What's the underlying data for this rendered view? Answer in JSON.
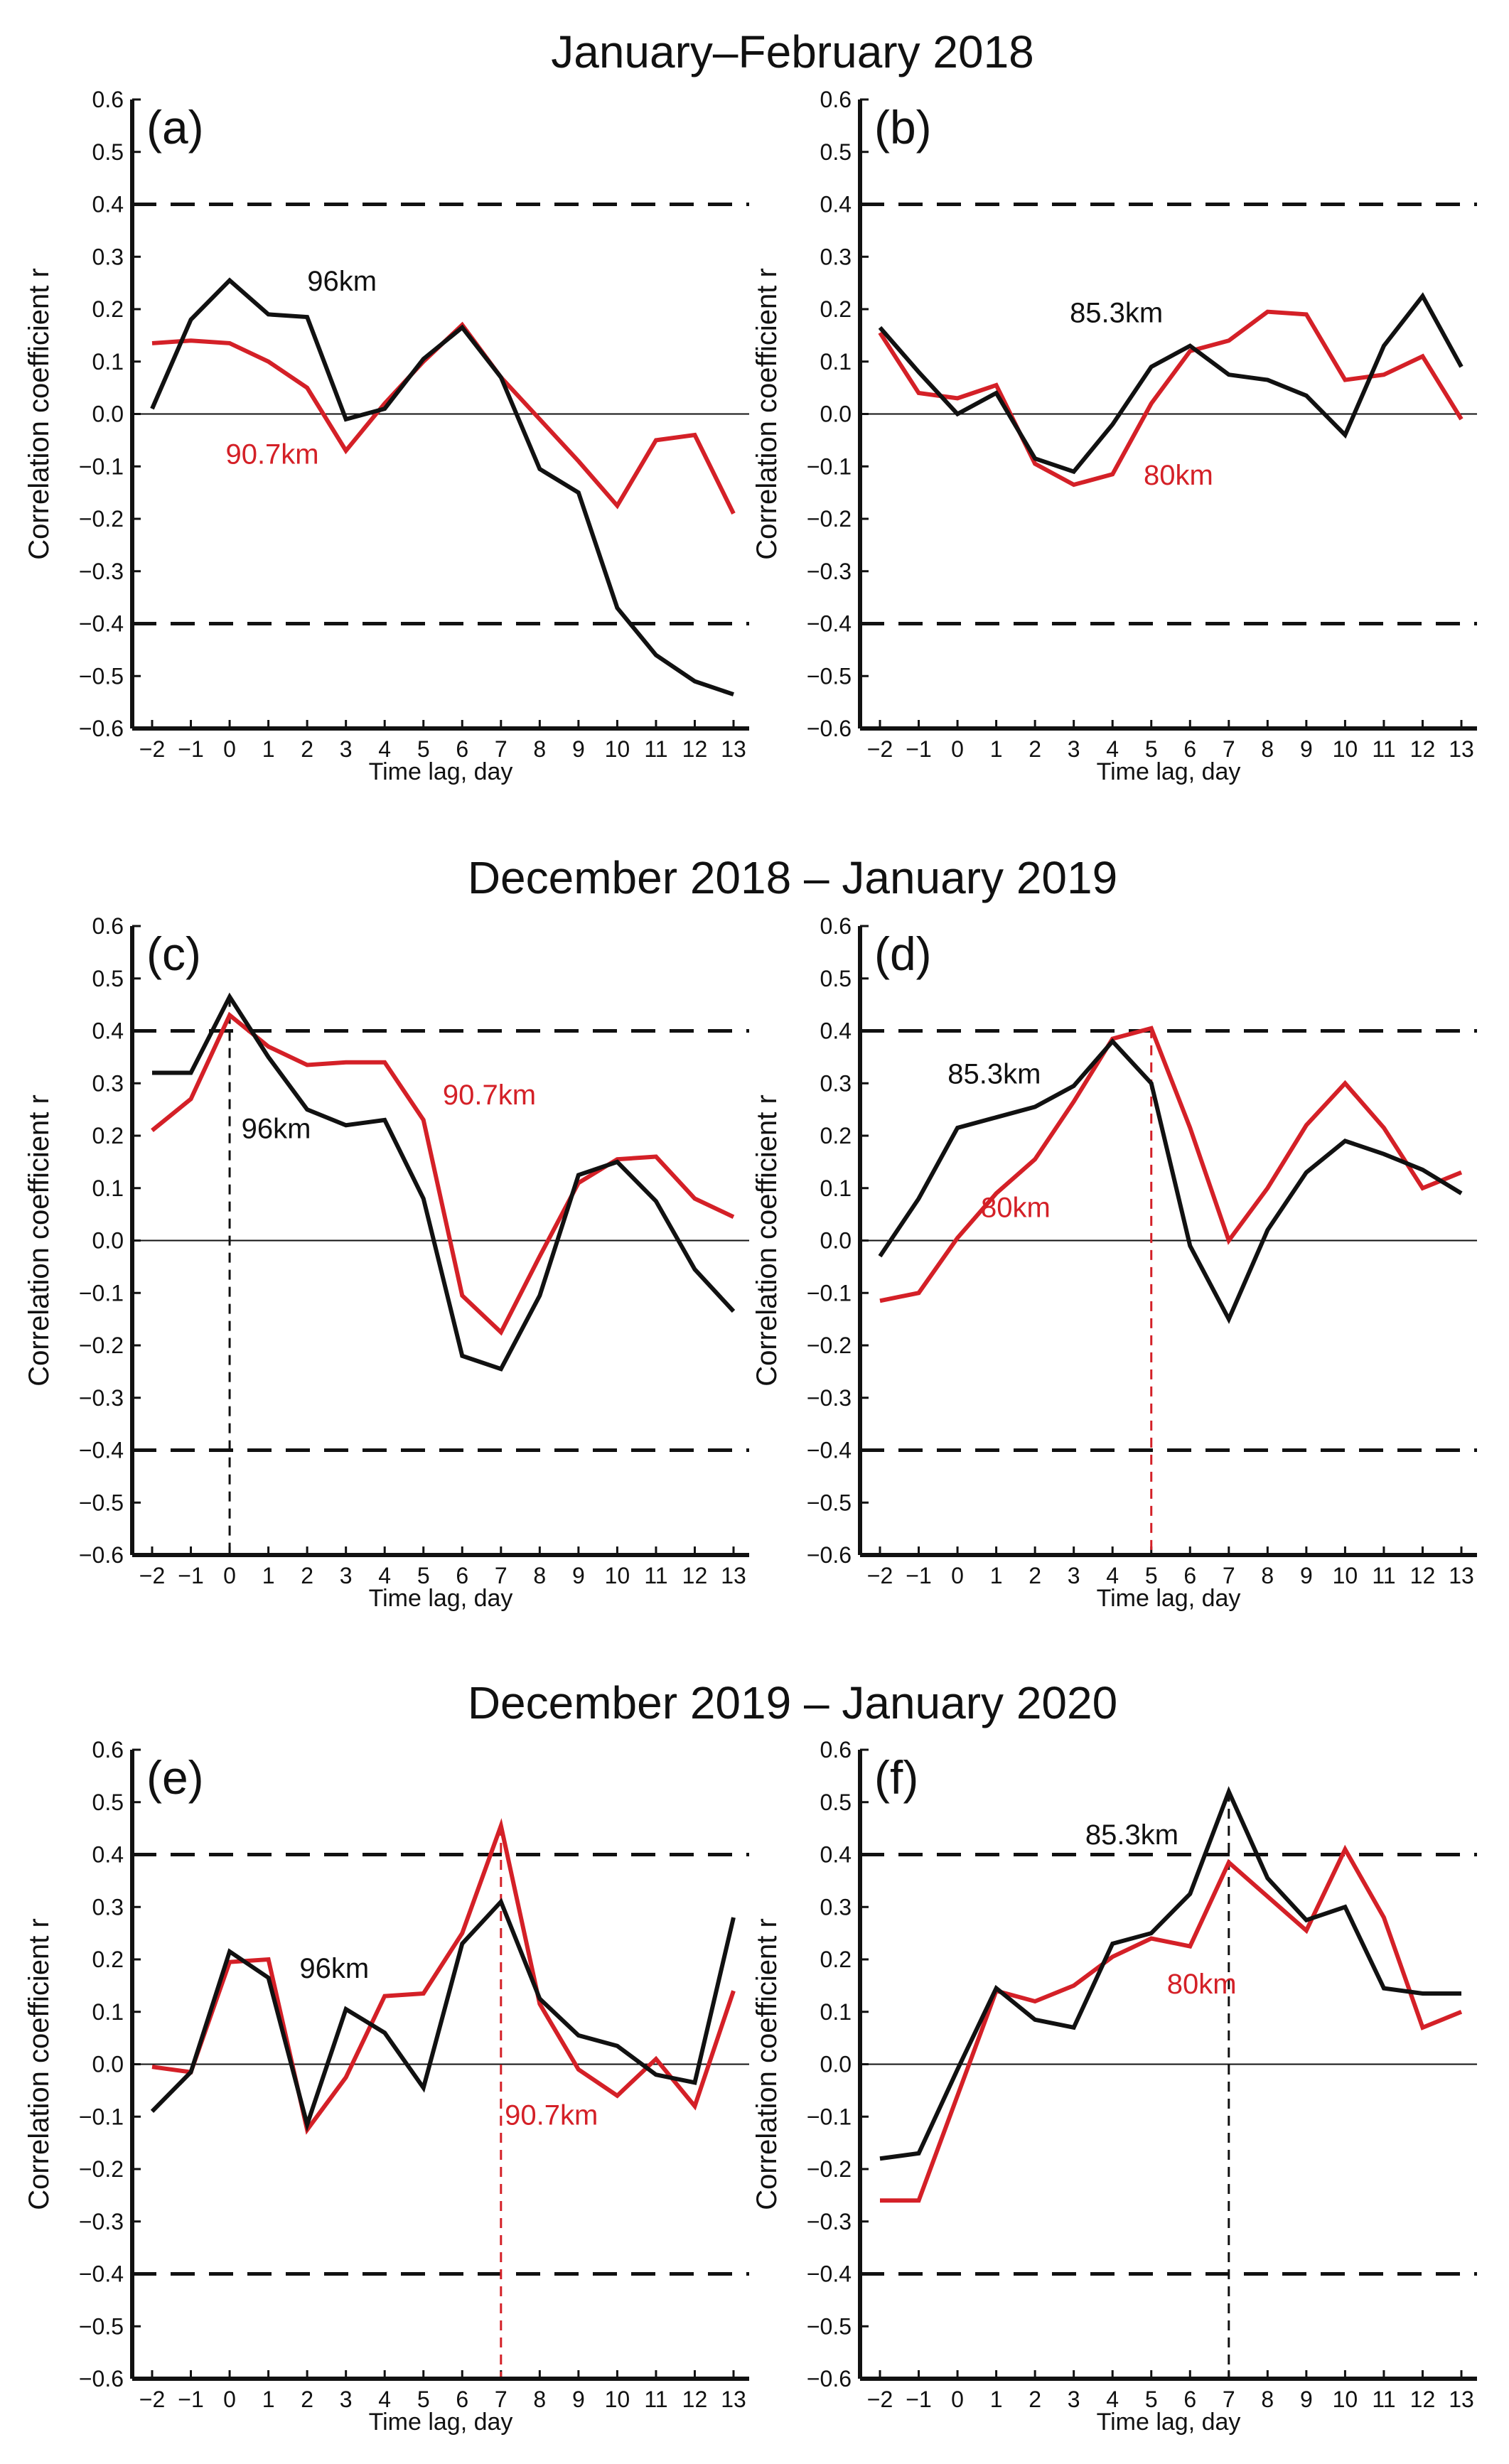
{
  "rows": [
    {
      "title": "January–February 2018",
      "panels": [
        0,
        1
      ]
    },
    {
      "title": "December 2018 – January 2019",
      "panels": [
        2,
        3
      ]
    },
    {
      "title": "December 2019 – January 2020",
      "panels": [
        4,
        5
      ]
    }
  ],
  "colors": {
    "black": "#111111",
    "red": "#d42027",
    "axis": "#111111"
  },
  "chart_data": [
    {
      "type": "line",
      "label": "(a)",
      "x": [
        -2,
        -1,
        0,
        1,
        2,
        3,
        4,
        5,
        6,
        7,
        8,
        9,
        10,
        11,
        12,
        13
      ],
      "xlabel": "Time lag, day",
      "ylabel": "Correlation coefficient r",
      "ylim": [
        -0.6,
        0.6
      ],
      "xlim": [
        -2,
        13
      ],
      "yticks": [
        "0.6",
        "0.5",
        "0.4",
        "0.3",
        "0.2",
        "0.1",
        "0.0",
        "−0.1",
        "−0.2",
        "−0.3",
        "−0.4",
        "−0.5",
        "−0.6"
      ],
      "xticks": [
        "−2",
        "−1",
        "0",
        "1",
        "2",
        "3",
        "4",
        "5",
        "6",
        "7",
        "8",
        "9",
        "10",
        "11",
        "12",
        "13"
      ],
      "significance": [
        0.4,
        -0.4
      ],
      "series": [
        {
          "name": "96km",
          "color": "black",
          "values": [
            0.01,
            0.18,
            0.255,
            0.19,
            0.185,
            -0.01,
            0.01,
            0.105,
            0.165,
            0.07,
            -0.105,
            -0.15,
            -0.37,
            -0.46,
            -0.51,
            -0.535
          ]
        },
        {
          "name": "90.7km",
          "color": "red",
          "values": [
            0.135,
            0.14,
            0.135,
            0.1,
            0.05,
            -0.07,
            0.02,
            0.1,
            0.17,
            0.07,
            -0.01,
            -0.09,
            -0.175,
            -0.05,
            -0.04,
            -0.19
          ]
        }
      ],
      "annotations": [
        {
          "text": "96km",
          "color": "black",
          "x": 2.9,
          "y": 0.235
        },
        {
          "text": "90.7km",
          "color": "red",
          "x": 1.1,
          "y": -0.095
        }
      ],
      "vline": null
    },
    {
      "type": "line",
      "label": "(b)",
      "x": [
        -2,
        -1,
        0,
        1,
        2,
        3,
        4,
        5,
        6,
        7,
        8,
        9,
        10,
        11,
        12,
        13
      ],
      "xlabel": "Time lag, day",
      "ylabel": "Correlation coefficient r",
      "ylim": [
        -0.6,
        0.6
      ],
      "xlim": [
        -2,
        13
      ],
      "yticks": [
        "0.6",
        "0.5",
        "0.4",
        "0.3",
        "0.2",
        "0.1",
        "0.0",
        "−0.1",
        "−0.2",
        "−0.3",
        "−0.4",
        "−0.5",
        "−0.6"
      ],
      "xticks": [
        "−2",
        "−1",
        "0",
        "1",
        "2",
        "3",
        "4",
        "5",
        "6",
        "7",
        "8",
        "9",
        "10",
        "11",
        "12",
        "13"
      ],
      "significance": [
        0.4,
        -0.4
      ],
      "series": [
        {
          "name": "85.3km",
          "color": "black",
          "values": [
            0.165,
            0.08,
            0.0,
            0.04,
            -0.085,
            -0.11,
            -0.02,
            0.09,
            0.13,
            0.075,
            0.065,
            0.035,
            -0.04,
            0.13,
            0.225,
            0.09
          ]
        },
        {
          "name": "80km",
          "color": "red",
          "values": [
            0.155,
            0.04,
            0.03,
            0.055,
            -0.095,
            -0.135,
            -0.115,
            0.02,
            0.12,
            0.14,
            0.195,
            0.19,
            0.065,
            0.075,
            0.11,
            -0.01
          ]
        }
      ],
      "annotations": [
        {
          "text": "85.3km",
          "color": "black",
          "x": 4.1,
          "y": 0.175
        },
        {
          "text": "80km",
          "color": "red",
          "x": 5.7,
          "y": -0.135
        }
      ],
      "vline": null
    },
    {
      "type": "line",
      "label": "(c)",
      "x": [
        -2,
        -1,
        0,
        1,
        2,
        3,
        4,
        5,
        6,
        7,
        8,
        9,
        10,
        11,
        12,
        13
      ],
      "xlabel": "Time lag, day",
      "ylabel": "Correlation coefficient r",
      "ylim": [
        -0.6,
        0.6
      ],
      "xlim": [
        -2,
        13
      ],
      "yticks": [
        "0.6",
        "0.5",
        "0.4",
        "0.3",
        "0.2",
        "0.1",
        "0.0",
        "−0.1",
        "−0.2",
        "−0.3",
        "−0.4",
        "−0.5",
        "−0.6"
      ],
      "xticks": [
        "−2",
        "−1",
        "0",
        "1",
        "2",
        "3",
        "4",
        "5",
        "6",
        "7",
        "8",
        "9",
        "10",
        "11",
        "12",
        "13"
      ],
      "significance": [
        0.4,
        -0.4
      ],
      "series": [
        {
          "name": "96km",
          "color": "black",
          "values": [
            0.32,
            0.32,
            0.465,
            0.35,
            0.25,
            0.22,
            0.23,
            0.08,
            -0.22,
            -0.245,
            -0.105,
            0.125,
            0.15,
            0.075,
            -0.055,
            -0.135
          ]
        },
        {
          "name": "90.7km",
          "color": "red",
          "values": [
            0.21,
            0.27,
            0.43,
            0.37,
            0.335,
            0.34,
            0.34,
            0.23,
            -0.105,
            -0.175,
            -0.03,
            0.11,
            0.155,
            0.16,
            0.08,
            0.045
          ]
        }
      ],
      "annotations": [
        {
          "text": "96km",
          "color": "black",
          "x": 1.2,
          "y": 0.195
        },
        {
          "text": "90.7km",
          "color": "red",
          "x": 6.7,
          "y": 0.26
        }
      ],
      "vline": {
        "x": 0,
        "color": "black"
      }
    },
    {
      "type": "line",
      "label": "(d)",
      "x": [
        -2,
        -1,
        0,
        1,
        2,
        3,
        4,
        5,
        6,
        7,
        8,
        9,
        10,
        11,
        12,
        13
      ],
      "xlabel": "Time lag, day",
      "ylabel": "Correlation coefficient r",
      "ylim": [
        -0.6,
        0.6
      ],
      "xlim": [
        -2,
        13
      ],
      "yticks": [
        "0.6",
        "0.5",
        "0.4",
        "0.3",
        "0.2",
        "0.1",
        "0.0",
        "−0.1",
        "−0.2",
        "−0.3",
        "−0.4",
        "−0.5",
        "−0.6"
      ],
      "xticks": [
        "−2",
        "−1",
        "0",
        "1",
        "2",
        "3",
        "4",
        "5",
        "6",
        "7",
        "8",
        "9",
        "10",
        "11",
        "12",
        "13"
      ],
      "significance": [
        0.4,
        -0.4
      ],
      "series": [
        {
          "name": "85.3km",
          "color": "black",
          "values": [
            -0.03,
            0.08,
            0.215,
            0.235,
            0.255,
            0.295,
            0.38,
            0.3,
            -0.01,
            -0.15,
            0.02,
            0.13,
            0.19,
            0.165,
            0.135,
            0.09
          ]
        },
        {
          "name": "80km",
          "color": "red",
          "values": [
            -0.115,
            -0.1,
            0.005,
            0.09,
            0.155,
            0.265,
            0.385,
            0.405,
            0.215,
            0.0,
            0.1,
            0.22,
            0.3,
            0.215,
            0.1,
            0.13
          ]
        }
      ],
      "annotations": [
        {
          "text": "85.3km",
          "color": "black",
          "x": 0.95,
          "y": 0.3
        },
        {
          "text": "80km",
          "color": "red",
          "x": 1.5,
          "y": 0.045
        }
      ],
      "vline": {
        "x": 5,
        "color": "red"
      }
    },
    {
      "type": "line",
      "label": "(e)",
      "x": [
        -2,
        -1,
        0,
        1,
        2,
        3,
        4,
        5,
        6,
        7,
        8,
        9,
        10,
        11,
        12,
        13
      ],
      "xlabel": "Time lag, day",
      "ylabel": "Correlation coefficient r",
      "ylim": [
        -0.6,
        0.6
      ],
      "xlim": [
        -2,
        13
      ],
      "yticks": [
        "0.6",
        "0.5",
        "0.4",
        "0.3",
        "0.2",
        "0.1",
        "0.0",
        "−0.1",
        "−0.2",
        "−0.3",
        "−0.4",
        "−0.5",
        "−0.6"
      ],
      "xticks": [
        "−2",
        "−1",
        "0",
        "1",
        "2",
        "3",
        "4",
        "5",
        "6",
        "7",
        "8",
        "9",
        "10",
        "11",
        "12",
        "13"
      ],
      "significance": [
        0.4,
        -0.4
      ],
      "series": [
        {
          "name": "96km",
          "color": "black",
          "values": [
            -0.09,
            -0.015,
            0.215,
            0.165,
            -0.115,
            0.105,
            0.06,
            -0.045,
            0.23,
            0.31,
            0.125,
            0.055,
            0.035,
            -0.02,
            -0.035,
            0.28
          ]
        },
        {
          "name": "90.7km",
          "color": "red",
          "values": [
            -0.005,
            -0.015,
            0.195,
            0.2,
            -0.125,
            -0.025,
            0.13,
            0.135,
            0.25,
            0.455,
            0.115,
            -0.01,
            -0.06,
            0.01,
            -0.08,
            0.14
          ]
        }
      ],
      "annotations": [
        {
          "text": "96km",
          "color": "black",
          "x": 2.7,
          "y": 0.165
        },
        {
          "text": "90.7km",
          "color": "red",
          "x": 8.3,
          "y": -0.115
        }
      ],
      "vline": {
        "x": 7,
        "color": "red"
      }
    },
    {
      "type": "line",
      "label": "(f)",
      "x": [
        -2,
        -1,
        0,
        1,
        2,
        3,
        4,
        5,
        6,
        7,
        8,
        9,
        10,
        11,
        12,
        13
      ],
      "xlabel": "Time lag, day",
      "ylabel": "Correlation coefficient r",
      "ylim": [
        -0.6,
        0.6
      ],
      "xlim": [
        -2,
        13
      ],
      "yticks": [
        "0.6",
        "0.5",
        "0.4",
        "0.3",
        "0.2",
        "0.1",
        "0.0",
        "−0.1",
        "−0.2",
        "−0.3",
        "−0.4",
        "−0.5",
        "−0.6"
      ],
      "xticks": [
        "−2",
        "−1",
        "0",
        "1",
        "2",
        "3",
        "4",
        "5",
        "6",
        "7",
        "8",
        "9",
        "10",
        "11",
        "12",
        "13"
      ],
      "significance": [
        0.4,
        -0.4
      ],
      "series": [
        {
          "name": "85.3km",
          "color": "black",
          "values": [
            -0.18,
            -0.17,
            -0.01,
            0.145,
            0.085,
            0.07,
            0.23,
            0.25,
            0.325,
            0.52,
            0.355,
            0.275,
            0.3,
            0.145,
            0.135,
            0.135
          ]
        },
        {
          "name": "80km",
          "color": "red",
          "values": [
            -0.26,
            -0.26,
            -0.06,
            0.14,
            0.12,
            0.15,
            0.205,
            0.24,
            0.225,
            0.385,
            0.32,
            0.255,
            0.41,
            0.28,
            0.07,
            0.1
          ]
        }
      ],
      "annotations": [
        {
          "text": "85.3km",
          "color": "black",
          "x": 4.5,
          "y": 0.42
        },
        {
          "text": "80km",
          "color": "red",
          "x": 6.3,
          "y": 0.135
        }
      ],
      "vline": {
        "x": 7,
        "color": "black"
      }
    }
  ]
}
